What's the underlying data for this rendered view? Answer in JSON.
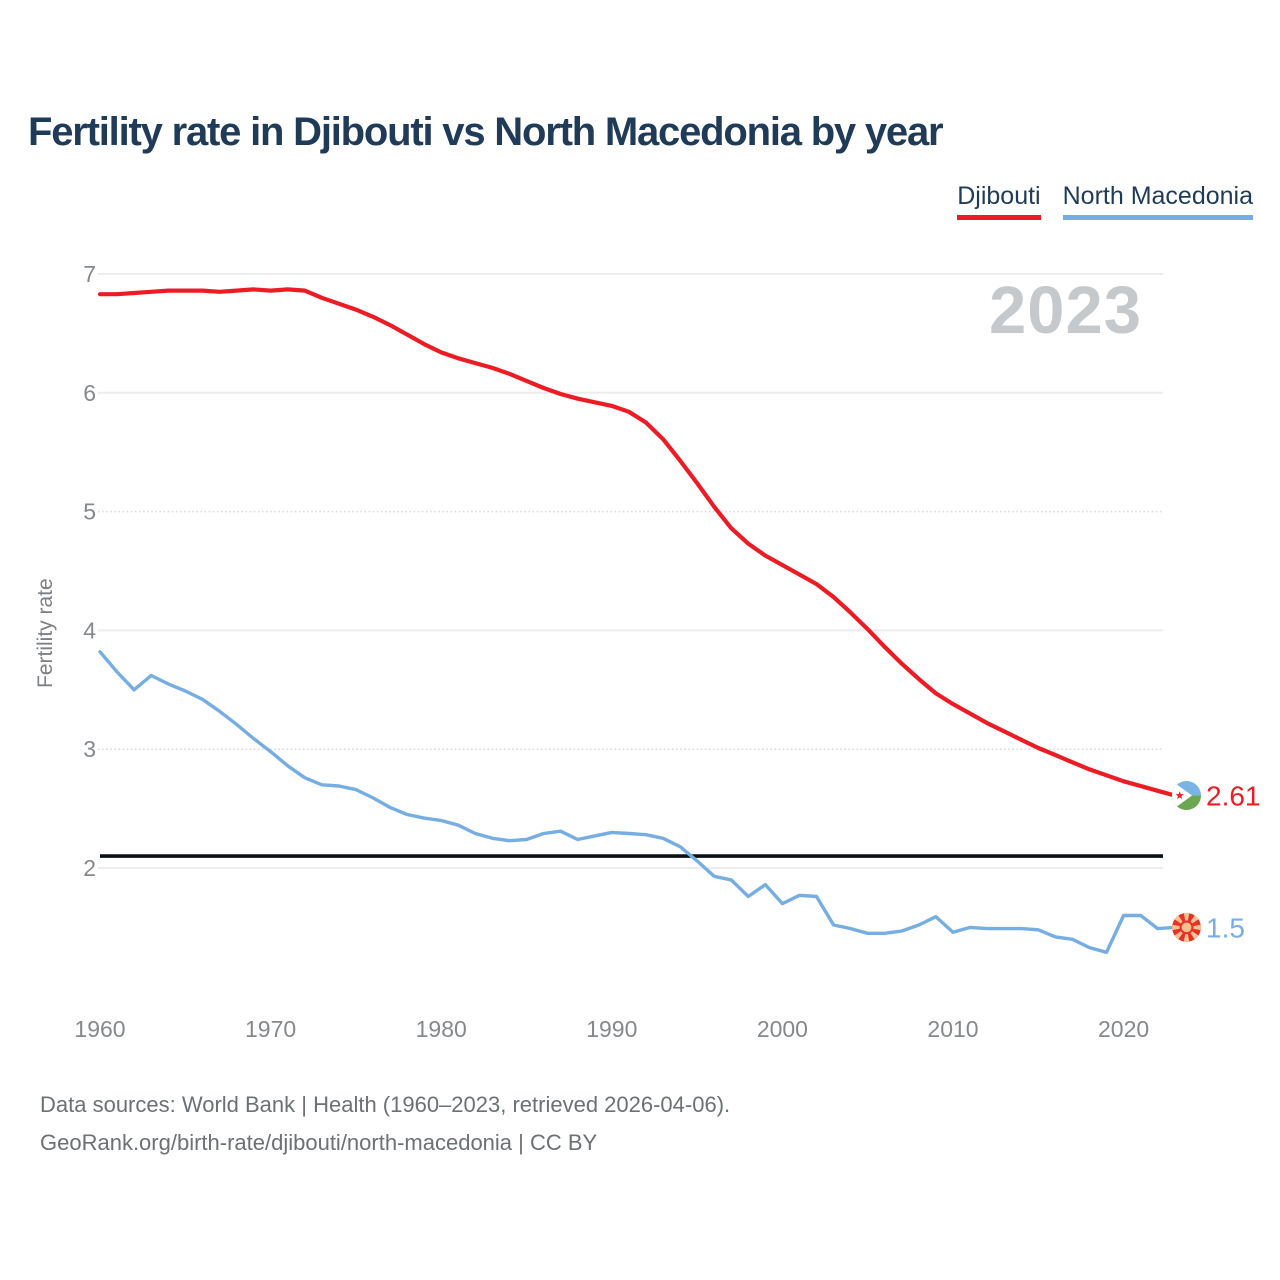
{
  "header": {
    "title": "Fertility rate in Djibouti vs North Macedonia by year"
  },
  "legend": {
    "items": [
      {
        "label": "Djibouti",
        "color": "#ed1c24"
      },
      {
        "label": "North Macedonia",
        "color": "#76ade2"
      }
    ]
  },
  "watermark": "2023",
  "y_axis_label": "Fertility rate",
  "footer": {
    "line1": "Data sources: World Bank | Health (1960–2023, retrieved 2026-04-06).",
    "line2": "GeoRank.org/birth-rate/djibouti/north-macedonia | CC BY"
  },
  "chart_data": {
    "type": "line",
    "title": "Fertility rate in Djibouti vs North Macedonia by year",
    "xlabel": "",
    "ylabel": "Fertility rate",
    "x_start": 1960,
    "x_end": 2023,
    "x_ticks": [
      1960,
      1970,
      1980,
      1990,
      2000,
      2010,
      2020
    ],
    "y_ticks": [
      7,
      6,
      5,
      4,
      3,
      2
    ],
    "ylim": [
      1.15,
      7.1
    ],
    "grid": "horizontal",
    "legend_position": "top-right",
    "watermark": "2023",
    "reference_line": {
      "value": 2.1,
      "color": "#0b1016"
    },
    "series": [
      {
        "name": "Djibouti",
        "color": "#ed1c24",
        "end_label": "2.61",
        "end_value": 2.61,
        "flag": "djibouti",
        "values": [
          6.83,
          6.83,
          6.84,
          6.85,
          6.86,
          6.86,
          6.86,
          6.85,
          6.86,
          6.87,
          6.86,
          6.87,
          6.86,
          6.8,
          6.75,
          6.7,
          6.64,
          6.57,
          6.49,
          6.41,
          6.34,
          6.29,
          6.25,
          6.21,
          6.16,
          6.1,
          6.04,
          5.99,
          5.95,
          5.92,
          5.89,
          5.84,
          5.75,
          5.61,
          5.43,
          5.24,
          5.04,
          4.86,
          4.73,
          4.63,
          4.55,
          4.47,
          4.39,
          4.28,
          4.15,
          4.01,
          3.86,
          3.72,
          3.59,
          3.47,
          3.38,
          3.3,
          3.22,
          3.15,
          3.08,
          3.01,
          2.95,
          2.89,
          2.83,
          2.78,
          2.73,
          2.69,
          2.65,
          2.61
        ]
      },
      {
        "name": "North Macedonia",
        "color": "#76ade2",
        "end_label": "1.5",
        "end_value": 1.5,
        "flag": "north-macedonia",
        "values": [
          3.82,
          3.65,
          3.5,
          3.62,
          3.55,
          3.49,
          3.42,
          3.32,
          3.21,
          3.09,
          2.98,
          2.86,
          2.76,
          2.7,
          2.69,
          2.66,
          2.59,
          2.51,
          2.45,
          2.42,
          2.4,
          2.36,
          2.29,
          2.25,
          2.23,
          2.24,
          2.29,
          2.31,
          2.24,
          2.27,
          2.3,
          2.29,
          2.28,
          2.25,
          2.18,
          2.06,
          1.93,
          1.9,
          1.76,
          1.86,
          1.7,
          1.77,
          1.76,
          1.52,
          1.49,
          1.45,
          1.45,
          1.47,
          1.52,
          1.59,
          1.46,
          1.5,
          1.49,
          1.49,
          1.49,
          1.48,
          1.42,
          1.4,
          1.33,
          1.29,
          1.6,
          1.6,
          1.49,
          1.5
        ]
      }
    ]
  }
}
